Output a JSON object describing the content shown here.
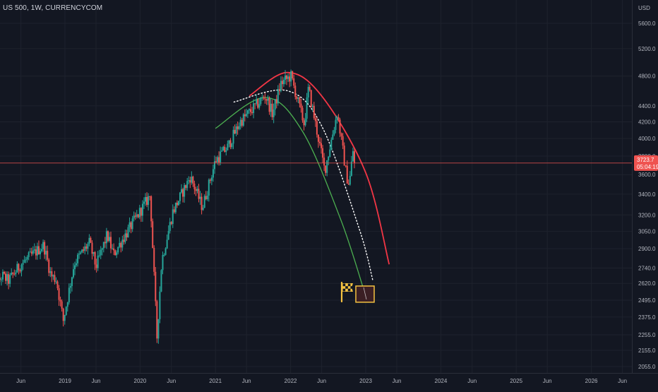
{
  "header": {
    "symbol": "US 500, 1W, CURRENCYCOM"
  },
  "price_axis": {
    "currency": "USD",
    "last_price": "3723.7",
    "countdown": "05:04:19"
  },
  "colors": {
    "background": "#131722",
    "up": "#26a69a",
    "down": "#ef5350",
    "axis_text": "#b2b5be",
    "price_line": "#ef5350",
    "arc_outer": "#f23645",
    "arc_inner": "#4caf50",
    "arc_mid": "#ffffff",
    "target_box": "#f5c241"
  },
  "chart_data": {
    "type": "candlestick",
    "title": "US 500, 1W, CURRENCYCOM",
    "timeframe": "1W",
    "y_ticks": [
      2055,
      2155,
      2255,
      2375,
      2495,
      2620,
      2740,
      2900,
      3050,
      3200,
      3400,
      3600,
      3800,
      4000,
      4200,
      4400,
      4800,
      5200,
      5600
    ],
    "y_tick_labels": [
      "2055.0",
      "2155.0",
      "2255.0",
      "2375.0",
      "2495.0",
      "2620.0",
      "2740.0",
      "2900.0",
      "3050.0",
      "3200.0",
      "3400.0",
      "3600.0",
      "3800.0",
      "4000.0",
      "4200.0",
      "4400.0",
      "4800.0",
      "5200.0",
      "5600.0"
    ],
    "y_scale": "log",
    "ylim": [
      2000,
      6000
    ],
    "x_ticks": [
      "2018-06-01",
      "2019-01-01",
      "2019-06-01",
      "2020-01-01",
      "2020-06-01",
      "2021-01-01",
      "2021-06-01",
      "2022-01-01",
      "2022-06-01",
      "2023-01-01",
      "2023-06-01",
      "2024-01-01",
      "2024-06-01",
      "2025-01-01",
      "2025-06-01",
      "2026-01-01",
      "2026-06-01"
    ],
    "x_tick_labels": [
      "Jun",
      "2019",
      "Jun",
      "2020",
      "Jun",
      "2021",
      "Jun",
      "2022",
      "Jun",
      "2023",
      "Jun",
      "2024",
      "Jun",
      "2025",
      "Jun",
      "2026",
      "Jun"
    ],
    "xlim": [
      "2018-01-01",
      "2026-07-01"
    ],
    "last_price": 3723.7,
    "close_path": [
      [
        "2018-01-01",
        2720
      ],
      [
        "2018-02-09",
        2620
      ],
      [
        "2018-03-01",
        2680
      ],
      [
        "2018-04-01",
        2640
      ],
      [
        "2018-06-01",
        2770
      ],
      [
        "2018-09-20",
        2930
      ],
      [
        "2018-10-25",
        2680
      ],
      [
        "2018-11-20",
        2650
      ],
      [
        "2018-12-24",
        2350
      ],
      [
        "2019-02-15",
        2780
      ],
      [
        "2019-04-30",
        2950
      ],
      [
        "2019-06-01",
        2750
      ],
      [
        "2019-07-25",
        3020
      ],
      [
        "2019-08-25",
        2850
      ],
      [
        "2019-10-01",
        2960
      ],
      [
        "2019-12-31",
        3230
      ],
      [
        "2020-02-19",
        3390
      ],
      [
        "2020-03-23",
        2240
      ],
      [
        "2020-04-15",
        2800
      ],
      [
        "2020-06-08",
        3230
      ],
      [
        "2020-09-01",
        3580
      ],
      [
        "2020-10-30",
        3270
      ],
      [
        "2021-01-01",
        3750
      ],
      [
        "2021-03-01",
        3900
      ],
      [
        "2021-05-01",
        4200
      ],
      [
        "2021-09-01",
        4530
      ],
      [
        "2021-10-05",
        4300
      ],
      [
        "2021-11-15",
        4700
      ],
      [
        "2022-01-03",
        4800
      ],
      [
        "2022-03-08",
        4170
      ],
      [
        "2022-03-29",
        4630
      ],
      [
        "2022-06-16",
        3640
      ],
      [
        "2022-08-16",
        4320
      ],
      [
        "2022-09-30",
        3580
      ],
      [
        "2022-10-13",
        3500
      ],
      [
        "2022-11-01",
        3880
      ],
      [
        "2022-11-07",
        3723.7
      ]
    ],
    "arcs": [
      {
        "style": "solid",
        "color": "#f23645",
        "points": [
          [
            "2021-06-15",
            4530
          ],
          [
            "2021-12-15",
            4850
          ],
          [
            "2022-06-01",
            4530
          ],
          [
            "2023-01-01",
            3620
          ],
          [
            "2023-04-25",
            2770
          ]
        ]
      },
      {
        "style": "dotted",
        "color": "#ffffff",
        "points": [
          [
            "2021-04-01",
            4450
          ],
          [
            "2021-12-15",
            4600
          ],
          [
            "2022-06-01",
            4150
          ],
          [
            "2022-12-01",
            3070
          ],
          [
            "2023-02-05",
            2640
          ]
        ]
      },
      {
        "style": "solid",
        "color": "#4caf50",
        "points": [
          [
            "2021-01-01",
            4120
          ],
          [
            "2021-09-01",
            4510
          ],
          [
            "2022-03-01",
            4080
          ],
          [
            "2022-09-01",
            3160
          ],
          [
            "2022-12-25",
            2560
          ]
        ]
      }
    ],
    "target": {
      "date": "2023-01-01",
      "price_high": 2600,
      "price_low": 2480
    },
    "flag_icon": "checkered-flag-icon"
  }
}
